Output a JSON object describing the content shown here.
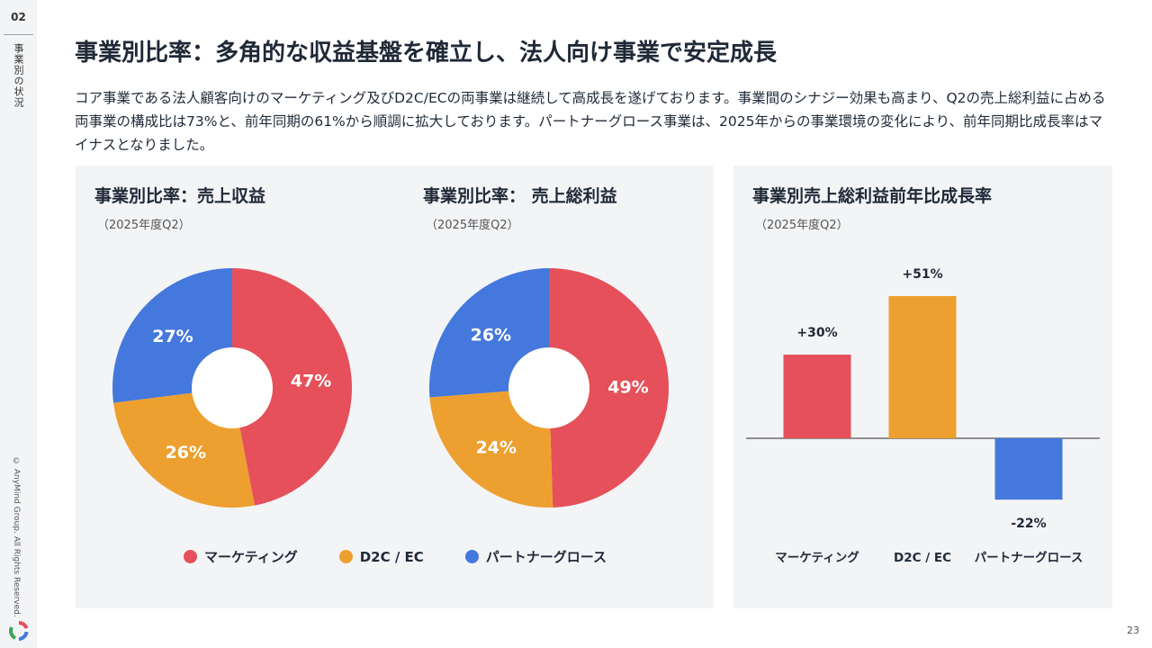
{
  "sidebar": {
    "page_code": "02",
    "section_label": "事業別の状況",
    "copyright": "© AnyMind Group. All Rights Reserved."
  },
  "title": "事業別比率：多角的な収益基盤を確立し、法人向け事業で安定成長",
  "lead": "コア事業である法人顧客向けのマーケティング及びD2C/ECの両事業は継続して高成長を遂げております。事業間のシナジー効果も高まり、Q2の売上総利益に占める両事業の構成比は73%と、前年同期の61%から順調に拡大しております。パートナーグロース事業は、2025年からの事業環境の変化により、前年同期比成長率はマイナスとなりました。",
  "colors": {
    "marketing": "#e5505a",
    "d2c": "#eda02f",
    "partner": "#4478dc"
  },
  "legend": {
    "items": [
      "マーケティング",
      "D2C / EC",
      "パートナーグロース"
    ]
  },
  "page_number": "23",
  "chart_data": [
    {
      "type": "pie",
      "title": "事業別比率：売上収益",
      "subtitle": "（2025年度Q2）",
      "categories": [
        "マーケティング",
        "D2C / EC",
        "パートナーグロース"
      ],
      "values": [
        47,
        26,
        27
      ],
      "labels": [
        "47%",
        "26%",
        "27%"
      ],
      "donut": true
    },
    {
      "type": "pie",
      "title": "事業別比率： 売上総利益",
      "subtitle": "（2025年度Q2）",
      "categories": [
        "マーケティング",
        "D2C / EC",
        "パートナーグロース"
      ],
      "values": [
        49,
        24,
        26
      ],
      "labels": [
        "49%",
        "24%",
        "26%"
      ],
      "donut": true
    },
    {
      "type": "bar",
      "title": "事業別売上総利益前年比成長率",
      "subtitle": "（2025年度Q2）",
      "categories": [
        "マーケティング",
        "D2C / EC",
        "パートナーグロース"
      ],
      "values": [
        30,
        51,
        -22
      ],
      "labels": [
        "+30%",
        "+51%",
        "-22%"
      ],
      "ylim": [
        -22,
        51
      ],
      "grid": false
    }
  ]
}
